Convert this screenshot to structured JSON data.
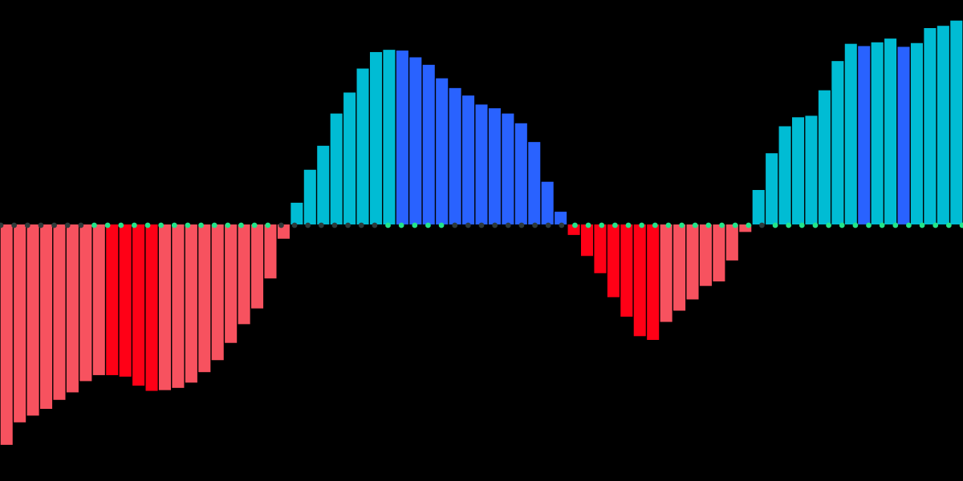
{
  "chart_data": {
    "type": "bar",
    "title": "",
    "xlabel": "",
    "ylabel": "",
    "ylim": [
      -3.2,
      3.2
    ],
    "grid": false,
    "legend": "none",
    "colors": {
      "background": "#000000",
      "up_strong": "#00BCD4",
      "up_weak": "#2962FF",
      "down_strong": "#FF0016",
      "down_weak": "#F7525F",
      "dot_on": "#22E58A",
      "dot_off": "#2E3A3A"
    },
    "values": [
      -2.94,
      -2.64,
      -2.55,
      -2.46,
      -2.34,
      -2.24,
      -2.09,
      -2.01,
      -2.01,
      -2.03,
      -2.15,
      -2.22,
      -2.21,
      -2.18,
      -2.11,
      -1.97,
      -1.81,
      -1.58,
      -1.33,
      -1.12,
      -0.72,
      -0.19,
      0.29,
      0.73,
      1.05,
      1.48,
      1.76,
      2.08,
      2.3,
      2.33,
      2.32,
      2.23,
      2.13,
      1.95,
      1.82,
      1.72,
      1.6,
      1.55,
      1.48,
      1.35,
      1.1,
      0.57,
      0.17,
      -0.14,
      -0.42,
      -0.65,
      -0.97,
      -1.23,
      -1.49,
      -1.54,
      -1.3,
      -1.15,
      -1.0,
      -0.82,
      -0.76,
      -0.48,
      -0.1,
      0.46,
      0.95,
      1.31,
      1.43,
      1.45,
      1.79,
      2.18,
      2.41,
      2.38,
      2.43,
      2.48,
      2.37,
      2.42,
      2.62,
      2.65,
      2.72
    ],
    "dots": [
      "off",
      "off",
      "off",
      "off",
      "off",
      "off",
      "off",
      "on",
      "on",
      "on",
      "on",
      "on",
      "on",
      "on",
      "on",
      "on",
      "on",
      "on",
      "on",
      "on",
      "on",
      "off",
      "off",
      "off",
      "off",
      "off",
      "off",
      "off",
      "off",
      "on",
      "on",
      "on",
      "on",
      "on",
      "off",
      "off",
      "off",
      "off",
      "off",
      "off",
      "off",
      "off",
      "off",
      "on",
      "on",
      "on",
      "on",
      "on",
      "on",
      "on",
      "on",
      "on",
      "on",
      "on",
      "on",
      "on",
      "on",
      "off",
      "on",
      "on",
      "on",
      "on",
      "on",
      "on",
      "on",
      "on",
      "on",
      "on",
      "on",
      "on",
      "on",
      "on",
      "on"
    ]
  }
}
